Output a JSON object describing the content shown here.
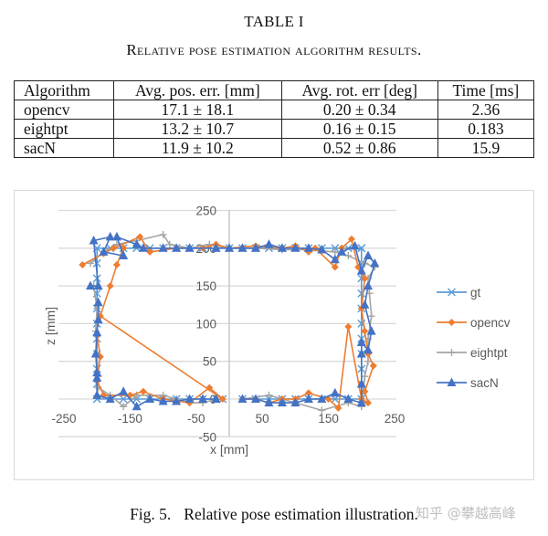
{
  "table": {
    "title": "TABLE I",
    "caption": "Relative pose estimation algorithm results.",
    "headers": [
      "Algorithm",
      "Avg. pos. err. [mm]",
      "Avg. rot. err [deg]",
      "Time [ms]"
    ],
    "rows": [
      [
        "opencv",
        "17.1 ± 18.1",
        "0.20 ± 0.34",
        "2.36"
      ],
      [
        "eightpt",
        "13.2 ± 10.7",
        "0.16 ± 0.15",
        "0.183"
      ],
      [
        "sacN",
        "11.9 ± 10.2",
        "0.52 ± 0.86",
        "15.9"
      ]
    ]
  },
  "figure": {
    "caption_number": "Fig. 5.",
    "caption_text": "Relative pose estimation illustration.",
    "watermark": "知乎 @攀越高峰"
  },
  "chart_data": {
    "type": "scatter",
    "title": "",
    "xlabel": "x [mm]",
    "ylabel": "z [mm]",
    "xlim": [
      -250,
      250
    ],
    "ylim": [
      -50,
      250
    ],
    "x_ticks": [
      -250,
      -150,
      -50,
      50,
      150,
      250
    ],
    "y_ticks": [
      -50,
      0,
      50,
      100,
      150,
      200,
      250
    ],
    "grid": true,
    "legend_position": "right",
    "series": [
      {
        "name": "gt",
        "color": "#5B9BD5",
        "marker": "x",
        "points": [
          [
            200,
            200
          ],
          [
            180,
            200
          ],
          [
            160,
            200
          ],
          [
            140,
            200
          ],
          [
            120,
            200
          ],
          [
            100,
            200
          ],
          [
            80,
            200
          ],
          [
            60,
            200
          ],
          [
            40,
            200
          ],
          [
            20,
            200
          ],
          [
            0,
            200
          ],
          [
            -20,
            200
          ],
          [
            -40,
            200
          ],
          [
            -60,
            200
          ],
          [
            -80,
            200
          ],
          [
            -100,
            200
          ],
          [
            -120,
            200
          ],
          [
            -140,
            200
          ],
          [
            -160,
            200
          ],
          [
            -180,
            200
          ],
          [
            -200,
            200
          ],
          [
            -200,
            180
          ],
          [
            -200,
            160
          ],
          [
            -200,
            140
          ],
          [
            -200,
            120
          ],
          [
            -200,
            100
          ],
          [
            -200,
            80
          ],
          [
            -200,
            60
          ],
          [
            -200,
            40
          ],
          [
            -200,
            20
          ],
          [
            -200,
            0
          ],
          [
            -180,
            0
          ],
          [
            -160,
            0
          ],
          [
            -140,
            0
          ],
          [
            -120,
            0
          ],
          [
            -100,
            0
          ],
          [
            -80,
            0
          ],
          [
            -60,
            0
          ],
          [
            -40,
            0
          ],
          [
            -20,
            0
          ],
          [
            -10,
            0
          ]
        ],
        "points_right": [
          [
            20,
            0
          ],
          [
            40,
            0
          ],
          [
            60,
            0
          ],
          [
            80,
            0
          ],
          [
            100,
            0
          ],
          [
            120,
            0
          ],
          [
            140,
            0
          ],
          [
            160,
            0
          ],
          [
            180,
            0
          ],
          [
            200,
            0
          ],
          [
            200,
            20
          ],
          [
            200,
            40
          ],
          [
            200,
            60
          ],
          [
            200,
            80
          ],
          [
            200,
            100
          ],
          [
            200,
            120
          ],
          [
            200,
            140
          ],
          [
            200,
            160
          ],
          [
            200,
            180
          ],
          [
            200,
            200
          ]
        ]
      },
      {
        "name": "opencv",
        "color": "#ED7D31",
        "marker": "diamond",
        "points": [
          [
            -222,
            178
          ],
          [
            -190,
            193
          ],
          [
            -175,
            200
          ],
          [
            -135,
            215
          ],
          [
            -120,
            195
          ],
          [
            -80,
            200
          ],
          [
            -40,
            200
          ],
          [
            -20,
            205
          ],
          [
            0,
            200
          ],
          [
            40,
            203
          ],
          [
            80,
            200
          ],
          [
            100,
            203
          ],
          [
            120,
            195
          ],
          [
            130,
            200
          ],
          [
            160,
            175
          ],
          [
            170,
            200
          ],
          [
            185,
            212
          ],
          [
            195,
            175
          ],
          [
            205,
            160
          ],
          [
            200,
            120
          ],
          [
            205,
            90
          ],
          [
            210,
            60
          ],
          [
            218,
            44
          ],
          [
            205,
            10
          ],
          [
            210,
            -5
          ],
          [
            200,
            0
          ],
          [
            180,
            96
          ],
          [
            165,
            -12
          ],
          [
            150,
            0
          ],
          [
            120,
            8
          ],
          [
            100,
            0
          ],
          [
            80,
            0
          ],
          [
            60,
            -5
          ],
          [
            40,
            0
          ],
          [
            20,
            0
          ]
        ],
        "points_left": [
          [
            -200,
            85
          ],
          [
            -195,
            56
          ],
          [
            -200,
            25
          ],
          [
            -190,
            5
          ],
          [
            -150,
            5
          ],
          [
            -130,
            10
          ],
          [
            -100,
            0
          ],
          [
            -60,
            -5
          ],
          [
            -30,
            15
          ],
          [
            -10,
            0
          ],
          [
            -195,
            110
          ],
          [
            -180,
            150
          ],
          [
            -170,
            178
          ],
          [
            -160,
            200
          ]
        ]
      },
      {
        "name": "eightpt",
        "color": "#A5A5A5",
        "marker": "plus",
        "points": [
          [
            -210,
            180
          ],
          [
            -190,
            195
          ],
          [
            -170,
            205
          ],
          [
            -140,
            210
          ],
          [
            -100,
            218
          ],
          [
            -90,
            205
          ],
          [
            -60,
            200
          ],
          [
            -30,
            205
          ],
          [
            0,
            200
          ],
          [
            40,
            200
          ],
          [
            80,
            198
          ],
          [
            120,
            198
          ],
          [
            160,
            195
          ],
          [
            180,
            190
          ],
          [
            205,
            180
          ],
          [
            220,
            175
          ],
          [
            210,
            160
          ],
          [
            212,
            140
          ],
          [
            215,
            110
          ],
          [
            210,
            80
          ],
          [
            210,
            50
          ],
          [
            205,
            30
          ],
          [
            200,
            -10
          ],
          [
            180,
            -5
          ],
          [
            140,
            -15
          ],
          [
            100,
            -5
          ],
          [
            60,
            5
          ],
          [
            20,
            0
          ]
        ],
        "points_left": [
          [
            -205,
            150
          ],
          [
            -200,
            120
          ],
          [
            -202,
            90
          ],
          [
            -200,
            60
          ],
          [
            -198,
            30
          ],
          [
            -198,
            15
          ],
          [
            -180,
            5
          ],
          [
            -160,
            -10
          ],
          [
            -140,
            5
          ],
          [
            -100,
            5
          ],
          [
            -80,
            0
          ],
          [
            -60,
            -5
          ],
          [
            -40,
            -5
          ],
          [
            -20,
            0
          ]
        ]
      },
      {
        "name": "sacN",
        "color": "#4472C4",
        "marker": "triangle",
        "points": [
          [
            -210,
            150
          ],
          [
            -198,
            150
          ],
          [
            -205,
            210
          ],
          [
            -180,
            215
          ],
          [
            -190,
            195
          ],
          [
            -160,
            190
          ],
          [
            -170,
            215
          ],
          [
            -140,
            205
          ],
          [
            -130,
            200
          ],
          [
            -100,
            200
          ],
          [
            -80,
            200
          ],
          [
            -60,
            200
          ],
          [
            -20,
            200
          ],
          [
            0,
            200
          ],
          [
            20,
            200
          ],
          [
            40,
            200
          ],
          [
            60,
            205
          ],
          [
            80,
            200
          ],
          [
            100,
            200
          ],
          [
            120,
            200
          ],
          [
            140,
            198
          ],
          [
            160,
            185
          ],
          [
            170,
            195
          ],
          [
            190,
            203
          ],
          [
            200,
            170
          ],
          [
            210,
            190
          ],
          [
            220,
            180
          ],
          [
            210,
            150
          ],
          [
            205,
            125
          ],
          [
            215,
            90
          ],
          [
            210,
            65
          ],
          [
            200,
            75
          ],
          [
            200,
            60
          ],
          [
            200,
            20
          ],
          [
            200,
            -5
          ],
          [
            180,
            0
          ],
          [
            160,
            8
          ],
          [
            140,
            0
          ],
          [
            120,
            0
          ],
          [
            100,
            -5
          ],
          [
            80,
            -5
          ],
          [
            60,
            -5
          ],
          [
            40,
            0
          ],
          [
            20,
            0
          ]
        ],
        "points_left": [
          [
            -198,
            128
          ],
          [
            -198,
            105
          ],
          [
            -200,
            88
          ],
          [
            -202,
            60
          ],
          [
            -200,
            35
          ],
          [
            -200,
            28
          ],
          [
            -200,
            5
          ],
          [
            -180,
            0
          ],
          [
            -160,
            10
          ],
          [
            -140,
            -10
          ],
          [
            -120,
            0
          ],
          [
            -100,
            -3
          ],
          [
            -80,
            -3
          ],
          [
            -60,
            0
          ],
          [
            -40,
            0
          ],
          [
            -20,
            0
          ]
        ]
      }
    ]
  }
}
